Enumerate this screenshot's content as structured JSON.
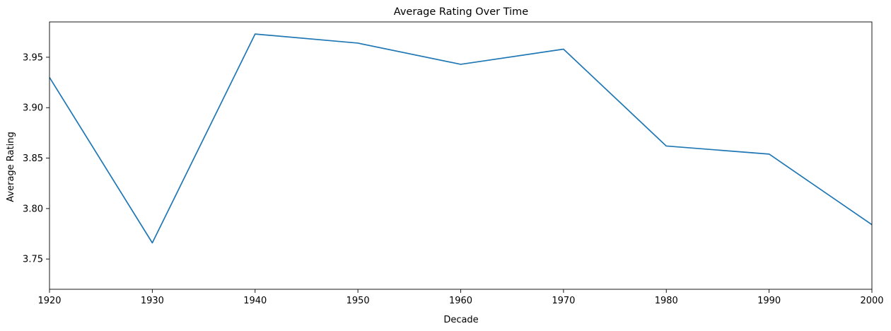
{
  "chart_data": {
    "type": "line",
    "title": "Average Rating Over Time",
    "xlabel": "Decade",
    "ylabel": "Average Rating",
    "x": [
      1920,
      1930,
      1940,
      1950,
      1960,
      1970,
      1980,
      1990,
      2000
    ],
    "series": [
      {
        "values": [
          3.93,
          3.766,
          3.973,
          3.964,
          3.943,
          3.958,
          3.862,
          3.854,
          3.784
        ]
      }
    ],
    "xlim": [
      1920,
      2000
    ],
    "ylim": [
      3.72,
      3.985
    ],
    "xticks": [
      "1920",
      "1930",
      "1940",
      "1950",
      "1960",
      "1970",
      "1980",
      "1990",
      "2000"
    ],
    "yticks": [
      "3.75",
      "3.80",
      "3.85",
      "3.90",
      "3.95"
    ],
    "grid": false,
    "legend": "none",
    "line_color": "#1f77b4"
  }
}
